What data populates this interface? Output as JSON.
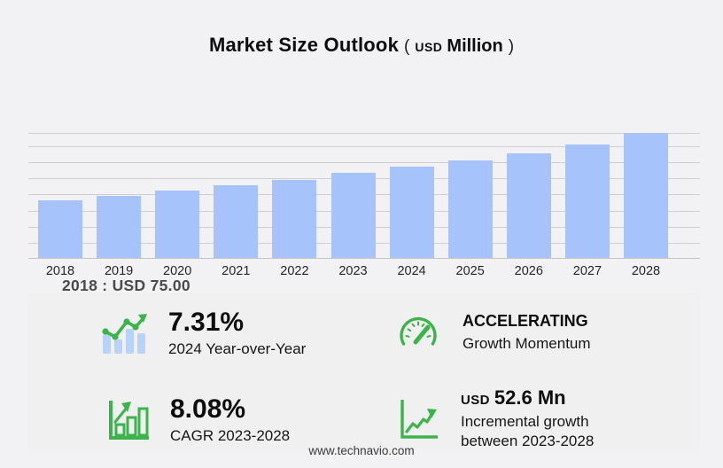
{
  "title": {
    "main": "Market Size Outlook",
    "open_paren": "(",
    "currency": "USD",
    "unit": "Million",
    "close_paren": ")"
  },
  "chart_data": {
    "type": "bar",
    "title": "Market Size Outlook (USD Million)",
    "categories": [
      "2018",
      "2019",
      "2020",
      "2021",
      "2022",
      "2023",
      "2024",
      "2025",
      "2026",
      "2027",
      "2028"
    ],
    "values": [
      75.0,
      81.2,
      87.6,
      94.8,
      102.2,
      110.8,
      118.9,
      127.6,
      137.3,
      148.4,
      163.4
    ],
    "xlabel": "",
    "ylabel": "USD Million",
    "ylim": [
      0,
      170
    ],
    "grid": true,
    "legend": false,
    "annotation": "2018 : USD 75.00",
    "bar_color": "#a6c4fb"
  },
  "chart_annotation": "2018 : USD 75.00",
  "stats": {
    "yoy": {
      "icon": "trend-bars-icon",
      "value": "7.31%",
      "label": "2024 Year-over-Year"
    },
    "momentum": {
      "icon": "speedometer-icon",
      "value": "ACCELERATING",
      "label": "Growth Momentum"
    },
    "cagr": {
      "icon": "bar-growth-icon",
      "value": "8.08%",
      "label": "CAGR 2023-2028"
    },
    "incremental": {
      "icon": "line-growth-icon",
      "currency": "USD",
      "value": "52.6 Mn",
      "label": "Incremental growth between 2023-2028"
    }
  },
  "footer": {
    "website": "www.technavio.com"
  },
  "colors": {
    "background": "#f2f2f4",
    "panel": "#f0f0f1",
    "bar": "#a6c4fb",
    "icon_bar": "#b9d3f8",
    "accent_green": "#3cb44b",
    "grid": "#cfcfcf"
  }
}
